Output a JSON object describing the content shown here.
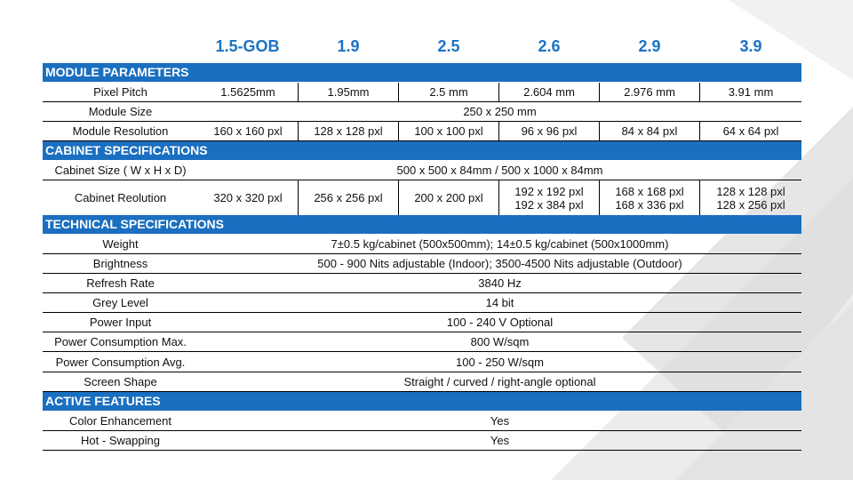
{
  "columns": [
    "1.5-GOB",
    "1.9",
    "2.5",
    "2.6",
    "2.9",
    "3.9"
  ],
  "sections": {
    "module": "MODULE PARAMETERS",
    "cabinet": "CABINET SPECIFICATIONS",
    "technical": "TECHNICAL SPECIFICATIONS",
    "features": "ACTIVE FEATURES"
  },
  "rows": {
    "pixel_pitch": {
      "label": "Pixel Pitch",
      "values": [
        "1.5625mm",
        "1.95mm",
        "2.5 mm",
        "2.604 mm",
        "2.976 mm",
        "3.91 mm"
      ]
    },
    "module_size": {
      "label": "Module Size",
      "value": "250 x 250 mm"
    },
    "module_resolution": {
      "label": "Module Resolution",
      "values": [
        "160 x 160 pxl",
        "128 x 128 pxl",
        "100 x 100 pxl",
        "96 x 96 pxl",
        "84 x 84 pxl",
        "64 x 64 pxl"
      ]
    },
    "cabinet_size": {
      "label": "Cabinet Size ( W x H x D)",
      "value": "500 x 500 x 84mm / 500 x 1000 x 84mm"
    },
    "cabinet_resolution": {
      "label": "Cabinet Reolution",
      "values": [
        [
          "320 x 320 pxl"
        ],
        [
          "256 x 256 pxl"
        ],
        [
          "200 x 200 pxl"
        ],
        [
          "192 x 192 pxl",
          "192 x 384 pxl"
        ],
        [
          "168 x 168 pxl",
          "168 x 336 pxl"
        ],
        [
          "128 x 128 pxl",
          "128 x 256 pxl"
        ]
      ]
    },
    "weight": {
      "label": "Weight",
      "value": "7±0.5 kg/cabinet (500x500mm); 14±0.5 kg/cabinet (500x1000mm)"
    },
    "brightness": {
      "label": "Brightness",
      "value": "500 - 900 Nits adjustable (Indoor); 3500-4500 Nits adjustable (Outdoor)"
    },
    "refresh_rate": {
      "label": "Refresh Rate",
      "value": "3840 Hz"
    },
    "grey_level": {
      "label": "Grey Level",
      "value": "14 bit"
    },
    "power_input": {
      "label": "Power Input",
      "value": "100 - 240 V Optional"
    },
    "power_max": {
      "label": "Power Consumption Max.",
      "value": "800 W/sqm"
    },
    "power_avg": {
      "label": "Power Consumption Avg.",
      "value": "100 - 250 W/sqm"
    },
    "screen_shape": {
      "label": "Screen Shape",
      "value": "Straight / curved / right-angle optional"
    },
    "color_enhancement": {
      "label": "Color Enhancement",
      "value": "Yes"
    },
    "hot_swapping": {
      "label": "Hot - Swapping",
      "value": "Yes"
    }
  }
}
